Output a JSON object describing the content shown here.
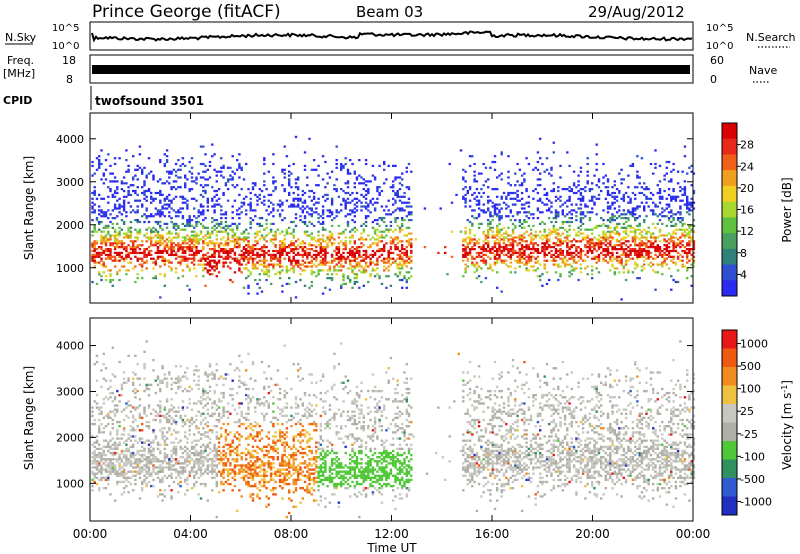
{
  "header": {
    "station": "Prince George (fitACF)",
    "beam": "Beam 03",
    "date": "29/Aug/2012"
  },
  "strips": {
    "nsky_label": "N.Sky",
    "nsearch_label": "N.Search",
    "noise_ticks": [
      "10^5",
      "10^0"
    ],
    "freq_label": "Freq.",
    "freq_unit": "[MHz]",
    "freq_ticks": [
      "18",
      "8"
    ],
    "nave_label": "Nave",
    "nave_ticks": [
      "60",
      "0"
    ],
    "cpid_label": "CPID",
    "cpid_value": "twofsound 3501"
  },
  "colors": {
    "power": [
      "#2a2af0",
      "#2f4fd0",
      "#30807a",
      "#4aa060",
      "#60c040",
      "#a8d830",
      "#f0d020",
      "#f0a020",
      "#f06018",
      "#e82818",
      "#d80000"
    ],
    "velocity": [
      "#2030c0",
      "#305ad0",
      "#309060",
      "#50c838",
      "#b0b0a8",
      "#c8c8c0",
      "#f0c040",
      "#f08c20",
      "#f05a10",
      "#e81818"
    ]
  },
  "chart_data": [
    {
      "type": "heatmap",
      "title": "Power",
      "xlabel": "Time UT",
      "ylabel": "Slant Range [km]",
      "x_ticks": [
        "00:00",
        "04:00",
        "08:00",
        "12:00",
        "16:00",
        "20:00",
        "00:00"
      ],
      "xlim_hours": [
        0,
        24
      ],
      "ylim_km": [
        180,
        4600
      ],
      "y_ticks": [
        1000,
        2000,
        3000,
        4000
      ],
      "colorbar": {
        "label": "Power [dB]",
        "ticks": [
          4,
          8,
          12,
          16,
          20,
          24,
          28
        ],
        "range": [
          0,
          32
        ]
      }
    },
    {
      "type": "heatmap",
      "title": "Velocity",
      "xlabel": "Time UT",
      "ylabel": "Slant Range [km]",
      "x_ticks": [
        "00:00",
        "04:00",
        "08:00",
        "12:00",
        "16:00",
        "20:00",
        "00:00"
      ],
      "xlim_hours": [
        0,
        24
      ],
      "ylim_km": [
        180,
        4600
      ],
      "y_ticks": [
        1000,
        2000,
        3000,
        4000
      ],
      "colorbar": {
        "label": "Velocity [m s-1]",
        "ticks": [
          1000,
          500,
          100,
          25,
          -25,
          -100,
          -500,
          -1000
        ]
      }
    }
  ]
}
